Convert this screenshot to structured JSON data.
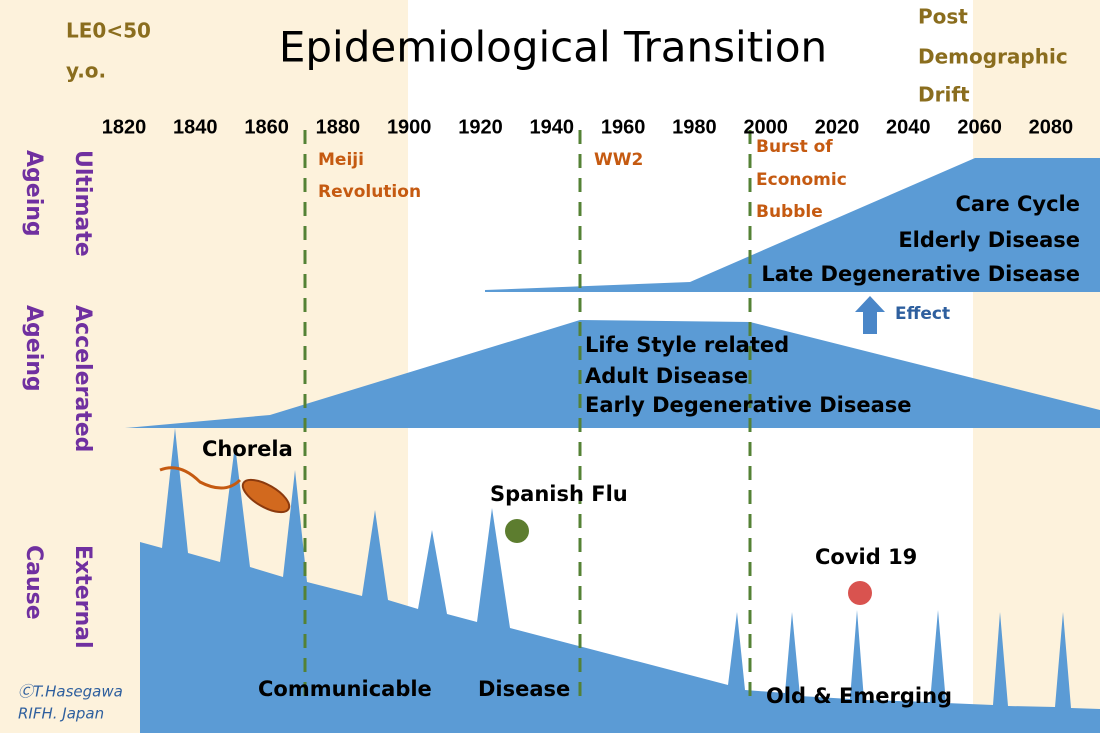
{
  "title": "Epidemiological Transition",
  "corner_labels": {
    "left": [
      "LE0<50",
      "y.o."
    ],
    "right": [
      "Post",
      "Demographic",
      "Drift"
    ]
  },
  "years": [
    "1820",
    "1840",
    "1860",
    "1880",
    "1900",
    "1920",
    "1940",
    "1960",
    "1980",
    "2000",
    "2020",
    "2040",
    "2060",
    "2080"
  ],
  "row_labels": [
    [
      "Ultimate",
      "Ageing"
    ],
    [
      "Accelerated",
      "Ageing"
    ],
    [
      "External",
      "Cause"
    ]
  ],
  "events": [
    [
      "Meiji",
      "Revolution"
    ],
    [
      "WW2"
    ],
    [
      "Burst of",
      "Economic",
      "Bubble"
    ]
  ],
  "bands": {
    "ultimate": [
      "Care Cycle",
      "Elderly Disease",
      "Late Degenerative Disease"
    ],
    "accelerated": [
      "Life Style related",
      "Adult Disease",
      "Early Degenerative Disease"
    ]
  },
  "effect": "Effect",
  "outbreaks": [
    "Chorela",
    "Spanish Flu",
    "Covid 19"
  ],
  "bottom": [
    "Communicable",
    "Disease",
    "Old & Emerging"
  ],
  "credit": [
    "ⒸT.Hasegawa",
    "RIFH. Japan"
  ]
}
